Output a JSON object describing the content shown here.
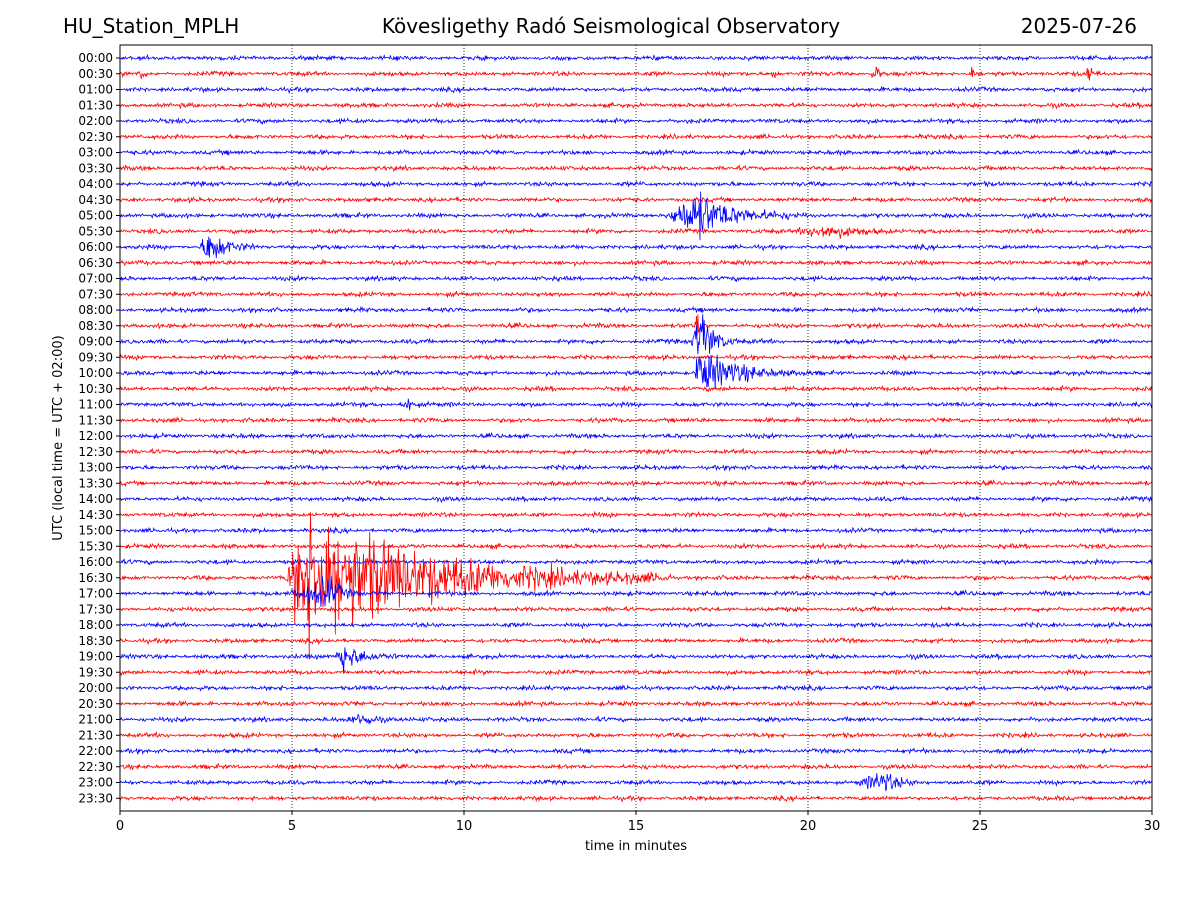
{
  "header": {
    "station": "HU_Station_MPLH",
    "observatory": "Kövesligethy Radó Seismological Observatory",
    "date": "2025-07-26"
  },
  "chart_data": {
    "type": "line",
    "subtype": "seismic helicorder",
    "xlabel": "time in minutes",
    "ylabel": "UTC (local time = UTC + 02:00)",
    "xlim": [
      0,
      30
    ],
    "x_ticks": [
      0,
      5,
      10,
      15,
      20,
      25,
      30
    ],
    "vertical_gridlines_at": [
      5,
      10,
      15,
      20,
      25
    ],
    "grid": "vertical dotted",
    "trace_colors": [
      "#0000ff",
      "#ff0000"
    ],
    "rows": [
      "00:00",
      "00:30",
      "01:00",
      "01:30",
      "02:00",
      "02:30",
      "03:00",
      "03:30",
      "04:00",
      "04:30",
      "05:00",
      "05:30",
      "06:00",
      "06:30",
      "07:00",
      "07:30",
      "08:00",
      "08:30",
      "09:00",
      "09:30",
      "10:00",
      "10:30",
      "11:00",
      "11:30",
      "12:00",
      "12:30",
      "13:00",
      "13:30",
      "14:00",
      "14:30",
      "15:00",
      "15:30",
      "16:00",
      "16:30",
      "17:00",
      "17:30",
      "18:00",
      "18:30",
      "19:00",
      "19:30",
      "20:00",
      "20:30",
      "21:00",
      "21:30",
      "22:00",
      "22:30",
      "23:00",
      "23:30"
    ],
    "events": [
      {
        "row": "00:30",
        "start_min": 0.5,
        "peak_min": 0.6,
        "end_min": 0.8,
        "amplitude": 0.5
      },
      {
        "row": "00:30",
        "start_min": 18.9,
        "peak_min": 19.0,
        "end_min": 19.2,
        "amplitude": 0.5
      },
      {
        "row": "00:30",
        "start_min": 21.8,
        "peak_min": 22.0,
        "end_min": 22.3,
        "amplitude": 0.5
      },
      {
        "row": "00:30",
        "start_min": 24.7,
        "peak_min": 24.8,
        "end_min": 24.9,
        "amplitude": 0.7
      },
      {
        "row": "00:30",
        "start_min": 28.0,
        "peak_min": 28.2,
        "end_min": 28.5,
        "amplitude": 0.6
      },
      {
        "row": "05:00",
        "start_min": 15.8,
        "peak_min": 16.8,
        "end_min": 20.0,
        "amplitude": 1.6
      },
      {
        "row": "05:30",
        "start_min": 19.5,
        "peak_min": 20.5,
        "end_min": 23.0,
        "amplitude": 0.5
      },
      {
        "row": "06:00",
        "start_min": 2.3,
        "peak_min": 2.6,
        "end_min": 4.0,
        "amplitude": 1.3
      },
      {
        "row": "08:30",
        "start_min": 16.7,
        "peak_min": 16.8,
        "end_min": 17.0,
        "amplitude": 1.2
      },
      {
        "row": "09:00",
        "start_min": 16.6,
        "peak_min": 16.9,
        "end_min": 18.0,
        "amplitude": 2.3
      },
      {
        "row": "10:00",
        "start_min": 16.7,
        "peak_min": 16.8,
        "end_min": 20.0,
        "amplitude": 1.8
      },
      {
        "row": "11:00",
        "start_min": 8.1,
        "peak_min": 8.4,
        "end_min": 8.8,
        "amplitude": 0.5
      },
      {
        "row": "16:30",
        "start_min": 4.8,
        "peak_min": 5.4,
        "end_min": 16.0,
        "amplitude": 5.0
      },
      {
        "row": "17:00",
        "start_min": 4.9,
        "peak_min": 6.1,
        "end_min": 7.0,
        "amplitude": 1.2
      },
      {
        "row": "19:00",
        "start_min": 6.2,
        "peak_min": 6.5,
        "end_min": 8.0,
        "amplitude": 1.1
      },
      {
        "row": "21:00",
        "start_min": 6.5,
        "peak_min": 7.2,
        "end_min": 8.2,
        "amplitude": 0.4
      },
      {
        "row": "23:00",
        "start_min": 21.3,
        "peak_min": 22.2,
        "end_min": 23.5,
        "amplitude": 0.7
      }
    ]
  }
}
